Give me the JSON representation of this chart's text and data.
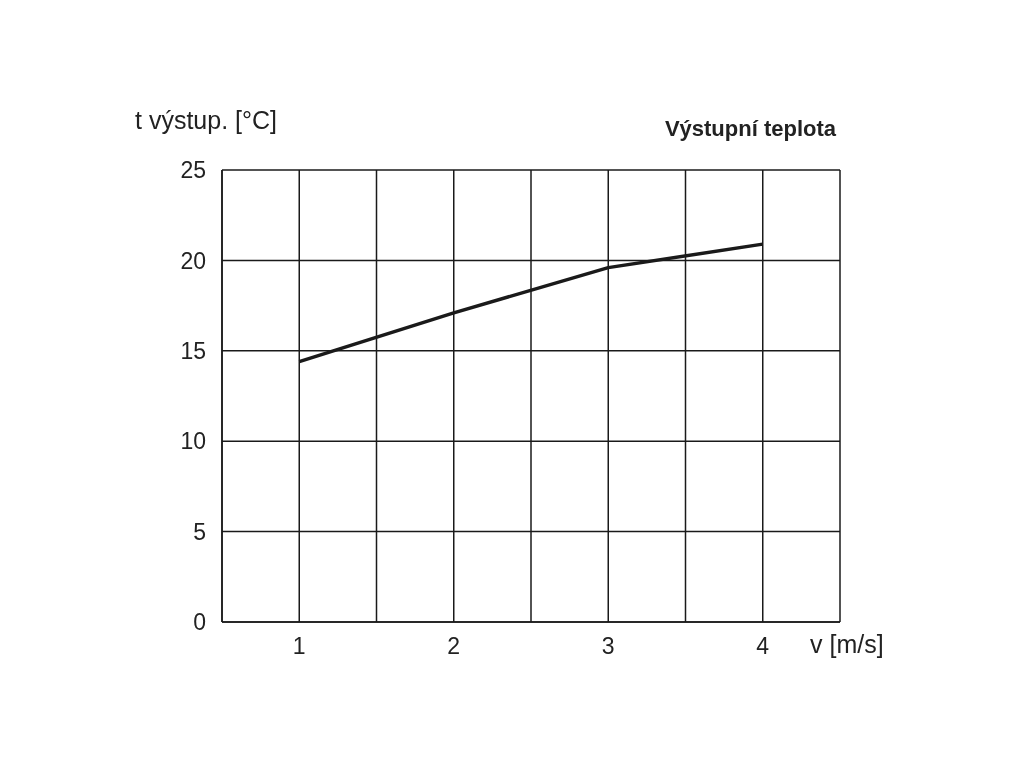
{
  "chart_data": {
    "type": "line",
    "title": "Výstupní teplota",
    "xlabel": "v [m/s]",
    "ylabel": "t výstup. [°C]",
    "x": [
      1,
      2,
      3,
      4
    ],
    "series": [
      {
        "color": "#1a1a1a",
        "values": [
          14.4,
          17.1,
          19.6,
          20.9
        ]
      }
    ],
    "xlim": [
      0.5,
      4.5
    ],
    "xticks": [
      {
        "value": 0.5,
        "label": null
      },
      1,
      {
        "value": 1.5,
        "label": null
      },
      2,
      {
        "value": 2.5,
        "label": null
      },
      3,
      {
        "value": 3.5,
        "label": null
      },
      4,
      {
        "value": 4.5,
        "label": null
      }
    ],
    "ylim": [
      0,
      25
    ],
    "yticks": [
      0,
      5,
      10,
      15,
      20,
      25
    ],
    "grid": true,
    "marker": "none",
    "line_style": "solid"
  }
}
